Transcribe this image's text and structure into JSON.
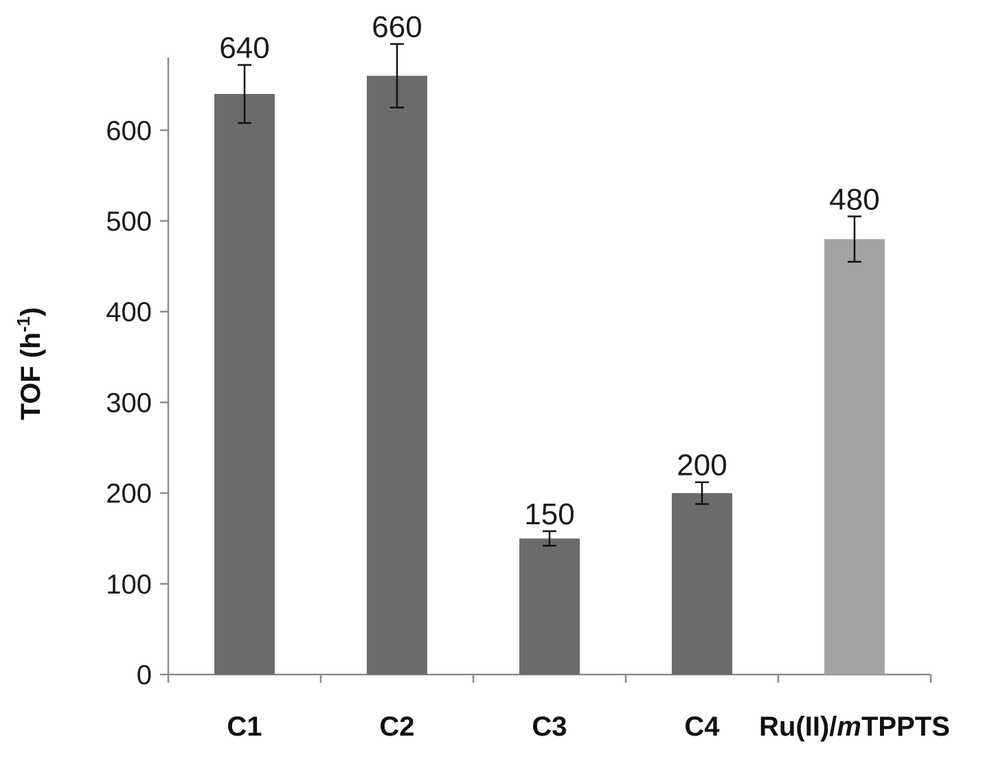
{
  "chart_data": {
    "type": "bar",
    "title": "",
    "xlabel": "",
    "ylabel": "TOF (h",
    "ylabel_superscript": "-1",
    "ylabel_suffix": ")",
    "ylim": [
      0,
      680
    ],
    "yticks": [
      0,
      100,
      200,
      300,
      400,
      500,
      600
    ],
    "grid": false,
    "legend": "none",
    "categories": [
      {
        "label": "C1"
      },
      {
        "label": "C2"
      },
      {
        "label": "C3"
      },
      {
        "label": "C4"
      },
      {
        "label_parts": [
          "Ru(II)/",
          "m",
          "TPPTS"
        ]
      }
    ],
    "values": [
      640,
      660,
      150,
      200,
      480
    ],
    "error": [
      32,
      35,
      8,
      12,
      25
    ],
    "data_labels": [
      "640",
      "660",
      "150",
      "200",
      "480"
    ],
    "colors": [
      "#6b6b6b",
      "#6b6b6b",
      "#6b6b6b",
      "#6b6b6b",
      "#a3a3a3"
    ],
    "axis_color": "#8c8c8c",
    "error_color": "#111111"
  }
}
